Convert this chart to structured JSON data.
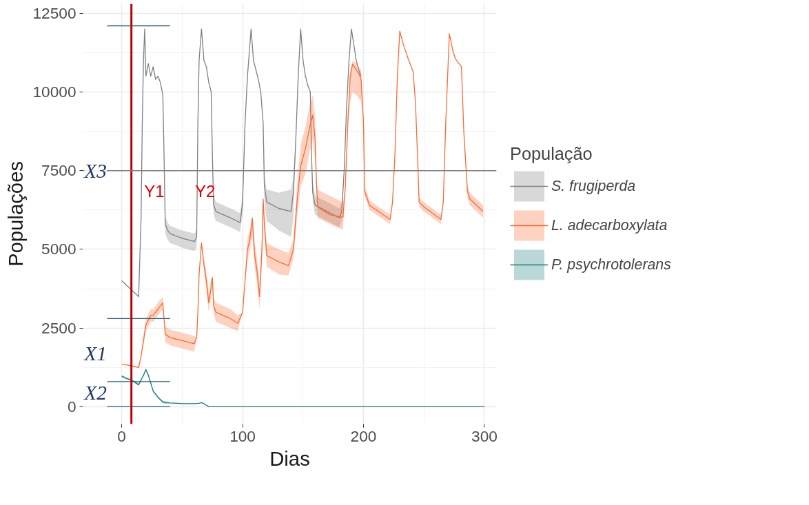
{
  "chart_data": {
    "type": "line",
    "xlabel": "Dias",
    "ylabel": "Populações",
    "legend_title": "População",
    "legend": "right",
    "grid": true,
    "marker": "none",
    "line_style": "solid",
    "xlim": [
      -32,
      310
    ],
    "xticks": [
      0,
      100,
      200,
      300
    ],
    "ylim": [
      -550,
      12800
    ],
    "yticks": [
      0,
      2500,
      5000,
      7500,
      10000,
      12500
    ],
    "series": [
      {
        "name": "S. frugiperda",
        "color": "#7f7f7f",
        "x": [
          0,
          14,
          16,
          17,
          18,
          19,
          20,
          22,
          24,
          26,
          28,
          30,
          32,
          34,
          35,
          36,
          38,
          40,
          50,
          60,
          61,
          62,
          63,
          64,
          66,
          68,
          70,
          72,
          74,
          75,
          76,
          78,
          90,
          98,
          100,
          102,
          104,
          106,
          107,
          109,
          111,
          113,
          115,
          117,
          118,
          120,
          130,
          140,
          142,
          144,
          146,
          148,
          150,
          152,
          154,
          156,
          157,
          158,
          160,
          170,
          180,
          182,
          184,
          186,
          188,
          190,
          192,
          194,
          196,
          198
        ],
        "values": [
          4000,
          3500,
          6000,
          9000,
          11000,
          12000,
          10500,
          10900,
          10500,
          10800,
          10400,
          10500,
          10300,
          9900,
          8000,
          5800,
          5600,
          5500,
          5350,
          5250,
          5300,
          5400,
          9000,
          11000,
          12000,
          11000,
          10800,
          10300,
          10000,
          8000,
          6400,
          6200,
          6000,
          5850,
          6500,
          9000,
          10500,
          11500,
          12000,
          11000,
          10700,
          10400,
          10000,
          9000,
          7000,
          6500,
          6300,
          6200,
          6800,
          8500,
          10500,
          12000,
          11000,
          10500,
          10200,
          10000,
          8000,
          6800,
          6400,
          6200,
          6000,
          6200,
          7500,
          9500,
          11000,
          12000,
          11500,
          11000,
          10700,
          10500
        ],
        "lower": [
          4000,
          3500,
          6000,
          9000,
          11000,
          12000,
          10500,
          10900,
          10500,
          10800,
          10400,
          10500,
          10300,
          9900,
          8000,
          5500,
          5300,
          5200,
          5050,
          4950,
          5000,
          5100,
          9000,
          11000,
          12000,
          11000,
          10800,
          10300,
          10000,
          8000,
          6100,
          5900,
          5700,
          5550,
          6200,
          9000,
          10500,
          11500,
          12000,
          11000,
          10700,
          10400,
          10000,
          9000,
          6500,
          5900,
          5600,
          5400,
          6000,
          8500,
          10500,
          12000,
          11000,
          10500,
          10200,
          10000,
          8000,
          6500,
          6100,
          5900,
          5700,
          5900,
          7500,
          9500,
          11000,
          12000,
          11500,
          11000,
          10700,
          10500
        ],
        "upper": [
          4000,
          3500,
          6000,
          9000,
          11000,
          12000,
          10500,
          10900,
          10500,
          10800,
          10400,
          10500,
          10300,
          9900,
          8000,
          6050,
          5850,
          5750,
          5600,
          5500,
          5550,
          5650,
          9000,
          11000,
          12000,
          11000,
          10800,
          10300,
          10000,
          8000,
          6700,
          6500,
          6300,
          6150,
          6800,
          9000,
          10500,
          11500,
          12000,
          11000,
          10700,
          10400,
          10000,
          9000,
          7300,
          6900,
          6800,
          6900,
          7300,
          8500,
          10500,
          12000,
          11000,
          10500,
          10200,
          10000,
          8000,
          7100,
          6700,
          6500,
          6300,
          6500,
          7500,
          9500,
          11000,
          12000,
          11500,
          11000,
          10700,
          10500
        ]
      },
      {
        "name": "L. adecarboxylata",
        "color": "#fc6a33",
        "x": [
          0,
          8,
          14,
          16,
          18,
          20,
          22,
          24,
          26,
          28,
          30,
          32,
          34,
          35,
          36,
          40,
          50,
          60,
          62,
          63,
          64,
          66,
          68,
          70,
          72,
          74,
          75,
          76,
          78,
          90,
          96,
          100,
          102,
          104,
          106,
          108,
          110,
          112,
          114,
          116,
          117,
          118,
          120,
          130,
          138,
          142,
          145,
          148,
          152,
          155,
          158,
          160,
          161,
          162,
          172,
          183,
          185,
          187,
          189,
          191,
          194,
          196,
          198,
          200,
          201,
          205,
          222,
          224,
          226,
          228,
          230,
          233,
          237,
          241,
          243,
          245,
          246,
          250,
          264,
          266,
          268,
          271,
          274,
          276,
          281,
          283,
          286,
          288,
          299
        ],
        "values": [
          1350,
          1300,
          1250,
          1600,
          2100,
          2600,
          2750,
          2900,
          2900,
          3000,
          3100,
          3200,
          3300,
          2800,
          2300,
          2200,
          2100,
          2000,
          2200,
          3000,
          4200,
          5200,
          4500,
          4000,
          3300,
          3800,
          4100,
          3200,
          3000,
          2800,
          2650,
          3000,
          4000,
          5000,
          5300,
          6000,
          4800,
          4300,
          3500,
          5000,
          6600,
          5800,
          4800,
          4600,
          4480,
          5000,
          6500,
          7650,
          8200,
          8800,
          9260,
          8500,
          7200,
          6350,
          6100,
          6020,
          7000,
          9000,
          10500,
          10880,
          10700,
          10600,
          10400,
          9000,
          6840,
          6400,
          5950,
          6500,
          8000,
          10500,
          11930,
          11500,
          11050,
          10650,
          9660,
          7640,
          6500,
          6350,
          5950,
          6500,
          9000,
          11850,
          11300,
          11050,
          10800,
          8700,
          6840,
          6600,
          6200
        ],
        "lower": [
          1350,
          1300,
          1250,
          1600,
          1950,
          2400,
          2550,
          2700,
          2700,
          2800,
          2900,
          3000,
          3100,
          2800,
          2050,
          1950,
          1850,
          1750,
          2200,
          3000,
          4200,
          5200,
          4300,
          3700,
          3000,
          3500,
          4100,
          2950,
          2700,
          2500,
          2400,
          3000,
          4000,
          4650,
          4950,
          5500,
          4400,
          3900,
          3100,
          4600,
          6600,
          5500,
          4450,
          4200,
          4170,
          4700,
          6000,
          7000,
          7400,
          8000,
          8500,
          7800,
          7000,
          6000,
          5800,
          5620,
          7000,
          9000,
          9700,
          10000,
          9900,
          9800,
          9700,
          9000,
          6700,
          6250,
          5800,
          6500,
          8000,
          10500,
          11930,
          11500,
          11050,
          10650,
          9660,
          7640,
          6350,
          6200,
          5800,
          6500,
          9000,
          11850,
          11300,
          11050,
          10800,
          8700,
          6640,
          6400,
          6000
        ],
        "upper": [
          1350,
          1300,
          1250,
          1600,
          2250,
          2800,
          2950,
          3100,
          3100,
          3200,
          3300,
          3400,
          3500,
          2800,
          2550,
          2450,
          2350,
          2250,
          2200,
          3000,
          4200,
          5200,
          4700,
          4300,
          3600,
          4100,
          4100,
          3450,
          3300,
          3100,
          2900,
          3000,
          4000,
          5350,
          5650,
          6000,
          5200,
          4700,
          3900,
          5400,
          6600,
          6100,
          5200,
          5000,
          4890,
          5300,
          7000,
          8300,
          8900,
          9500,
          9900,
          9200,
          7400,
          6900,
          6700,
          6500,
          7000,
          9000,
          10700,
          11000,
          10900,
          10800,
          10700,
          9000,
          7000,
          6550,
          6100,
          6500,
          8000,
          10500,
          11930,
          11500,
          11050,
          10650,
          9660,
          7640,
          6650,
          6500,
          6100,
          6500,
          9000,
          11850,
          11300,
          11050,
          10800,
          8700,
          7040,
          6800,
          6400
        ]
      },
      {
        "name": "P. psychrotolerans",
        "color": "#1a7f7a",
        "x": [
          0,
          4,
          8,
          12,
          14,
          16,
          18,
          20,
          22,
          26,
          30,
          34,
          37,
          40,
          50,
          60,
          64,
          66,
          68,
          70,
          72,
          300
        ],
        "values": [
          970,
          900,
          850,
          750,
          700,
          850,
          1000,
          1180,
          1000,
          500,
          300,
          150,
          130,
          120,
          100,
          100,
          110,
          130,
          100,
          50,
          0,
          0
        ],
        "lower": [
          930,
          860,
          810,
          710,
          660,
          810,
          960,
          1140,
          960,
          460,
          260,
          110,
          90,
          110,
          90,
          90,
          100,
          120,
          90,
          40,
          0,
          0
        ],
        "upper": [
          1010,
          940,
          890,
          790,
          740,
          890,
          1040,
          1220,
          1040,
          540,
          340,
          190,
          170,
          130,
          110,
          110,
          120,
          140,
          110,
          60,
          0,
          0
        ]
      },
      {
        "type": "line",
        "color": "#1f5f7a",
        "x": [
          -12,
          40
        ],
        "values": [
          12100,
          12100
        ]
      },
      {
        "type": "line",
        "color": "#1f5f7a",
        "x": [
          -12,
          40
        ],
        "values": [
          2800,
          2800
        ]
      },
      {
        "type": "line",
        "color": "#1f5f7a",
        "x": [
          -12,
          40
        ],
        "values": [
          800,
          800
        ]
      },
      {
        "type": "line",
        "color": "#1f5f7a",
        "x": [
          -12,
          40
        ],
        "values": [
          0,
          0
        ]
      }
    ],
    "ref_lines": [
      {
        "axis": "x",
        "value": 8,
        "color": "#c00000"
      },
      {
        "axis": "y",
        "value": 7500,
        "color": "#808080",
        "label": "X3"
      }
    ],
    "annotations": [
      "X1",
      "X2",
      "Y1",
      "Y2"
    ]
  }
}
